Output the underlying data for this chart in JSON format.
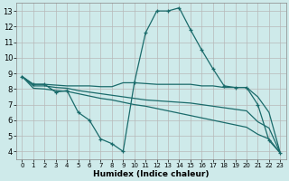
{
  "bg_color": "#ceeaea",
  "grid_color": "#b8b8b8",
  "line_color": "#1a6b6b",
  "xlabel": "Humidex (Indice chaleur)",
  "ylim": [
    3.5,
    13.5
  ],
  "xlim": [
    -0.5,
    23.5
  ],
  "yticks": [
    4,
    5,
    6,
    7,
    8,
    9,
    10,
    11,
    12,
    13
  ],
  "xticks": [
    0,
    1,
    2,
    3,
    4,
    5,
    6,
    7,
    8,
    9,
    10,
    11,
    12,
    13,
    14,
    15,
    16,
    17,
    18,
    19,
    20,
    21,
    22,
    23
  ],
  "line1_x": [
    0,
    1,
    2,
    3,
    4,
    5,
    6,
    7,
    8,
    9,
    10,
    11,
    12,
    13,
    14,
    15,
    16,
    17,
    18,
    19,
    20,
    21,
    22,
    23
  ],
  "line1_y": [
    8.8,
    8.3,
    8.3,
    7.8,
    7.9,
    6.5,
    6.0,
    4.8,
    4.5,
    4.0,
    8.4,
    11.6,
    13.0,
    13.0,
    13.2,
    11.8,
    10.5,
    9.3,
    8.2,
    8.1,
    8.1,
    7.0,
    4.7,
    3.9
  ],
  "line2_x": [
    0,
    1,
    2,
    3,
    4,
    5,
    6,
    7,
    8,
    9,
    10,
    11,
    12,
    13,
    14,
    15,
    16,
    17,
    18,
    19,
    20,
    21,
    22,
    23
  ],
  "line2_y": [
    8.8,
    8.3,
    8.3,
    8.25,
    8.2,
    8.2,
    8.2,
    8.15,
    8.15,
    8.4,
    8.4,
    8.35,
    8.3,
    8.3,
    8.3,
    8.3,
    8.2,
    8.2,
    8.1,
    8.1,
    8.1,
    7.5,
    6.5,
    3.9
  ],
  "line3_x": [
    0,
    1,
    2,
    3,
    4,
    5,
    6,
    7,
    8,
    9,
    10,
    11,
    12,
    13,
    14,
    15,
    16,
    17,
    18,
    19,
    20,
    21,
    22,
    23
  ],
  "line3_y": [
    8.8,
    8.2,
    8.2,
    8.1,
    8.05,
    7.9,
    7.8,
    7.7,
    7.6,
    7.5,
    7.4,
    7.3,
    7.25,
    7.2,
    7.15,
    7.1,
    7.0,
    6.9,
    6.8,
    6.7,
    6.6,
    5.9,
    5.5,
    3.9
  ],
  "line4_x": [
    0,
    1,
    2,
    3,
    4,
    5,
    6,
    7,
    8,
    9,
    10,
    11,
    12,
    13,
    14,
    15,
    16,
    17,
    18,
    19,
    20,
    21,
    22,
    23
  ],
  "line4_y": [
    8.8,
    8.05,
    8.0,
    7.9,
    7.85,
    7.7,
    7.55,
    7.4,
    7.3,
    7.15,
    7.0,
    6.9,
    6.75,
    6.6,
    6.45,
    6.3,
    6.15,
    6.0,
    5.85,
    5.7,
    5.55,
    5.1,
    4.8,
    3.9
  ]
}
